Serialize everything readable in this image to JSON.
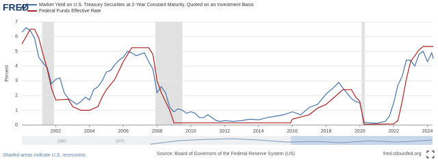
{
  "logo": "FRED",
  "chart_data": {
    "type": "line",
    "y_label": "Percent",
    "xlim": [
      2000,
      2024.3
    ],
    "xticks": [
      2002,
      2004,
      2006,
      2008,
      2010,
      2012,
      2014,
      2016,
      2018,
      2020,
      2022,
      2024
    ],
    "ylim": [
      0,
      7
    ],
    "yticks": [
      0,
      1,
      2,
      3,
      4,
      5,
      6,
      7
    ],
    "grid": true,
    "recessions": [
      [
        2001.2,
        2001.9
      ],
      [
        2007.9,
        2009.5
      ],
      [
        2020.1,
        2020.3
      ]
    ],
    "series": [
      {
        "name": "Market Yield on U.S. Treasury Securities at 2-Year Constant Maturity, Quoted on an Investment Basis",
        "color": "#4572a7",
        "x": [
          2000,
          2000.25,
          2000.5,
          2000.75,
          2001,
          2001.25,
          2001.5,
          2001.75,
          2002,
          2002.25,
          2002.5,
          2002.75,
          2003,
          2003.25,
          2003.5,
          2003.75,
          2004,
          2004.25,
          2004.5,
          2004.75,
          2005,
          2005.25,
          2005.5,
          2005.75,
          2006,
          2006.25,
          2006.5,
          2006.75,
          2007,
          2007.25,
          2007.5,
          2007.75,
          2008,
          2008.25,
          2008.5,
          2008.75,
          2009,
          2009.25,
          2009.5,
          2009.75,
          2010,
          2010.25,
          2010.5,
          2010.75,
          2011,
          2011.25,
          2011.5,
          2011.75,
          2012,
          2012.5,
          2013,
          2013.5,
          2014,
          2014.5,
          2015,
          2015.5,
          2016,
          2016.5,
          2017,
          2017.5,
          2018,
          2018.5,
          2018.75,
          2019,
          2019.5,
          2019.75,
          2020,
          2020.25,
          2020.5,
          2021,
          2021.5,
          2021.75,
          2022,
          2022.25,
          2022.5,
          2022.75,
          2023,
          2023.25,
          2023.5,
          2023.75,
          2024,
          2024.25,
          2024.35
        ],
        "values": [
          6.3,
          6.6,
          6.4,
          5.9,
          4.6,
          4.2,
          3.9,
          2.8,
          3.1,
          3.2,
          2.2,
          1.8,
          1.6,
          1.4,
          1.6,
          1.9,
          1.7,
          2.4,
          2.6,
          3.0,
          3.6,
          3.7,
          4.1,
          4.4,
          4.6,
          5.0,
          4.9,
          4.7,
          4.8,
          4.9,
          4.3,
          3.8,
          2.2,
          2.6,
          2.2,
          1.2,
          0.9,
          1.1,
          1.0,
          0.8,
          0.9,
          0.8,
          0.5,
          0.5,
          0.7,
          0.5,
          0.3,
          0.25,
          0.3,
          0.25,
          0.3,
          0.4,
          0.35,
          0.5,
          0.6,
          0.7,
          0.9,
          0.7,
          1.2,
          1.4,
          2.1,
          2.6,
          2.9,
          2.5,
          1.8,
          1.6,
          1.5,
          0.2,
          0.15,
          0.12,
          0.25,
          0.6,
          1.5,
          2.7,
          3.3,
          4.4,
          4.4,
          4.0,
          4.8,
          5.0,
          4.3,
          4.9,
          4.5
        ]
      },
      {
        "name": "Federal Funds Effective Rate",
        "color": "#aa2222",
        "x": [
          2000,
          2000.5,
          2000.75,
          2001,
          2001.25,
          2001.5,
          2001.75,
          2002,
          2002.75,
          2003,
          2003.5,
          2004,
          2004.5,
          2004.75,
          2005,
          2005.5,
          2006,
          2006.5,
          2007.5,
          2007.75,
          2008,
          2008.25,
          2008.75,
          2009,
          2015.9,
          2016,
          2017,
          2017.5,
          2018,
          2018.5,
          2019,
          2019.5,
          2019.75,
          2020,
          2020.25,
          2022,
          2022.25,
          2022.5,
          2022.75,
          2023,
          2023.5,
          2023.75,
          2024.35
        ],
        "values": [
          5.5,
          6.5,
          6.5,
          5.9,
          4.8,
          3.8,
          2.5,
          1.7,
          1.75,
          1.25,
          1.0,
          1.0,
          1.25,
          1.9,
          2.4,
          3.1,
          4.3,
          5.25,
          5.25,
          4.8,
          3.0,
          2.2,
          1.0,
          0.15,
          0.15,
          0.4,
          0.7,
          1.15,
          1.4,
          1.9,
          2.4,
          2.4,
          1.9,
          1.6,
          0.05,
          0.08,
          0.3,
          1.6,
          3.1,
          4.3,
          5.1,
          5.33,
          5.33
        ]
      }
    ]
  },
  "navigator": {
    "labels": [
      "1960",
      "1970"
    ]
  },
  "footer": {
    "note": "Shaded areas indicate U.S. recessions.",
    "source": "Source: Board of Governors of the Federal Reserve System (US)",
    "site": "fred.stlouisfed.org"
  }
}
